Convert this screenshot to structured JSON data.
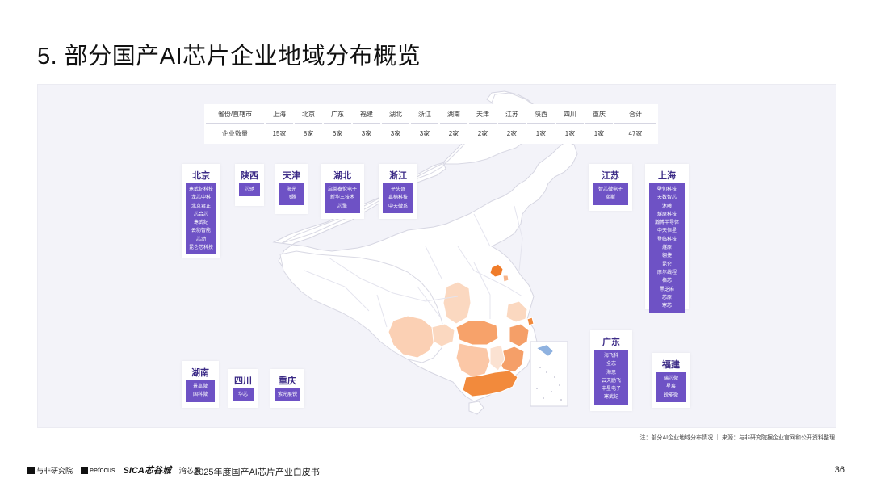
{
  "title": "5. 部分国产AI芯片企业地域分布概览",
  "stats_table": {
    "header": [
      "省份/直辖市",
      "上海",
      "北京",
      "广东",
      "福建",
      "湖北",
      "浙江",
      "湖南",
      "天津",
      "江苏",
      "陕西",
      "四川",
      "重庆",
      "合计"
    ],
    "row": [
      "企业数量",
      "15家",
      "8家",
      "6家",
      "3家",
      "3家",
      "3家",
      "2家",
      "2家",
      "2家",
      "1家",
      "1家",
      "1家",
      "47家"
    ]
  },
  "provinces": {
    "beijing": {
      "name": "北京",
      "companies": [
        "寒武纪科技",
        "龙芯中科",
        "北京君正",
        "芯合芯",
        "寒武纪",
        "云豹智能",
        "芯动",
        "昆仑芯科技"
      ]
    },
    "shaanxi": {
      "name": "陕西",
      "companies": [
        "芯驰"
      ]
    },
    "tianjin": {
      "name": "天津",
      "companies": [
        "海光",
        "飞腾"
      ]
    },
    "hubei": {
      "name": "湖北",
      "companies": [
        "启英泰伦电子",
        "新华三技术",
        "芯擎"
      ]
    },
    "zhejiang": {
      "name": "浙江",
      "companies": [
        "平头哥",
        "嘉楠科技",
        "中天微系"
      ]
    },
    "jiangsu": {
      "name": "江苏",
      "companies": [
        "智芯微电子",
        "奕斯"
      ]
    },
    "shanghai": {
      "name": "上海",
      "companies": [
        "壁仞科技",
        "天数智芯",
        "沐曦",
        "燧原科技",
        "瀚博半导体",
        "中天恒星",
        "登临科技",
        "燧原",
        "翱捷",
        "昆仑",
        "摩尔线程",
        "格芯",
        "黑芝麻",
        "芯原",
        "寒芯"
      ]
    },
    "hunan": {
      "name": "湖南",
      "companies": [
        "景嘉微",
        "国科微"
      ]
    },
    "sichuan": {
      "name": "四川",
      "companies": [
        "华芯"
      ]
    },
    "chongqing": {
      "name": "重庆",
      "companies": [
        "紫光展锐"
      ]
    },
    "guangdong": {
      "name": "广东",
      "companies": [
        "海飞科",
        "全志",
        "海思",
        "云天励飞",
        "中星电子",
        "寒武纪"
      ]
    },
    "fujian": {
      "name": "福建",
      "companies": [
        "瑞芯微",
        "星宸",
        "锐能微"
      ]
    }
  },
  "colors": {
    "accent": "#6e52c5",
    "card_title": "#3b2a86",
    "map_high": "#f28a3c",
    "map_mid": "#f7b48a",
    "map_low": "#fbd8c0",
    "map_base": "#ffffff",
    "panel_bg": "#f3f3f9"
  },
  "note": "注：部分AI企业地域分布情况 ｜ 来源：与非研究院据企业官网和公开资料整理",
  "footer": {
    "logos": [
      "与非研究院",
      "eefocus",
      "SICA芯谷城",
      "湾芯展"
    ],
    "book_title": "2025年度国产AI芯片产业白皮书",
    "page_number": "36"
  }
}
